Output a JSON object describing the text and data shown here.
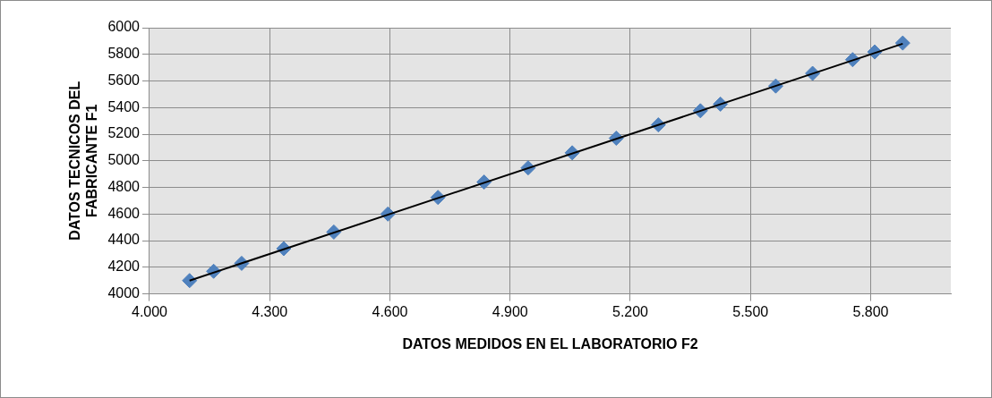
{
  "chart_data": {
    "type": "scatter",
    "xlabel": "DATOS MEDIDOS EN EL LABORATORIO F2",
    "ylabel": "DATOS TECNICOS DEL FABRICANTE F1",
    "x": [
      4100,
      4160,
      4230,
      4335,
      4460,
      4595,
      4720,
      4835,
      4945,
      5055,
      5165,
      5270,
      5375,
      5425,
      5563,
      5655,
      5755,
      5810,
      5880
    ],
    "series": [
      {
        "color": "#4f81bd",
        "marker": "diamond",
        "values": [
          4100,
          4170,
          4230,
          4340,
          4465,
          4600,
          4725,
          4840,
          4947,
          5060,
          5170,
          5270,
          5376,
          5426,
          5562,
          5657,
          5760,
          5818,
          5885
        ]
      },
      {
        "type": "line",
        "color": "#000000",
        "x": [
          4100,
          5880
        ],
        "values": [
          4100,
          5880
        ],
        "marker": "none"
      }
    ],
    "xlim": [
      4000,
      6000
    ],
    "xticks": [
      {
        "value": 4000,
        "label": "4.000"
      },
      {
        "value": 4300,
        "label": "4.300"
      },
      {
        "value": 4600,
        "label": "4.600"
      },
      {
        "value": 4900,
        "label": "4.900"
      },
      {
        "value": 5200,
        "label": "5.200"
      },
      {
        "value": 5500,
        "label": "5.500"
      },
      {
        "value": 5800,
        "label": "5.800"
      }
    ],
    "ylim": [
      4000,
      6000
    ],
    "yticks": [
      4000,
      4200,
      4400,
      4600,
      4800,
      5000,
      5200,
      5400,
      5600,
      5800,
      6000
    ],
    "grid": true,
    "legend": false
  }
}
